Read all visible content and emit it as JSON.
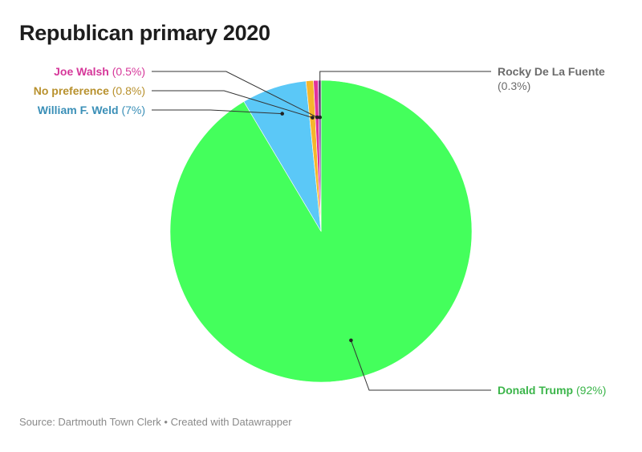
{
  "title": "Republican primary 2020",
  "footer": {
    "source": "Source: Dartmouth Town Clerk",
    "separator": " • ",
    "credit": "Created with Datawrapper"
  },
  "chart_data": {
    "type": "pie",
    "title": "Republican primary 2020",
    "slices": [
      {
        "name": "Donald Trump",
        "value": 92,
        "label": "(92%)",
        "color": "#44ff5c",
        "text_color": "#3bb54a"
      },
      {
        "name": "William F. Weld",
        "value": 7,
        "label": "(7%)",
        "color": "#5bc8f7",
        "text_color": "#3a8fb7"
      },
      {
        "name": "No preference",
        "value": 0.8,
        "label": "(0.8%)",
        "color": "#f5b62b",
        "text_color": "#b8912e"
      },
      {
        "name": "Joe Walsh",
        "value": 0.5,
        "label": "(0.5%)",
        "color": "#e0329c",
        "text_color": "#d6389a"
      },
      {
        "name": "Rocky De La Fuente",
        "value": 0.3,
        "label": "(0.3%)",
        "color": "#7a4fa0",
        "text_color": "#6b6b6b"
      }
    ],
    "legend": "none"
  }
}
